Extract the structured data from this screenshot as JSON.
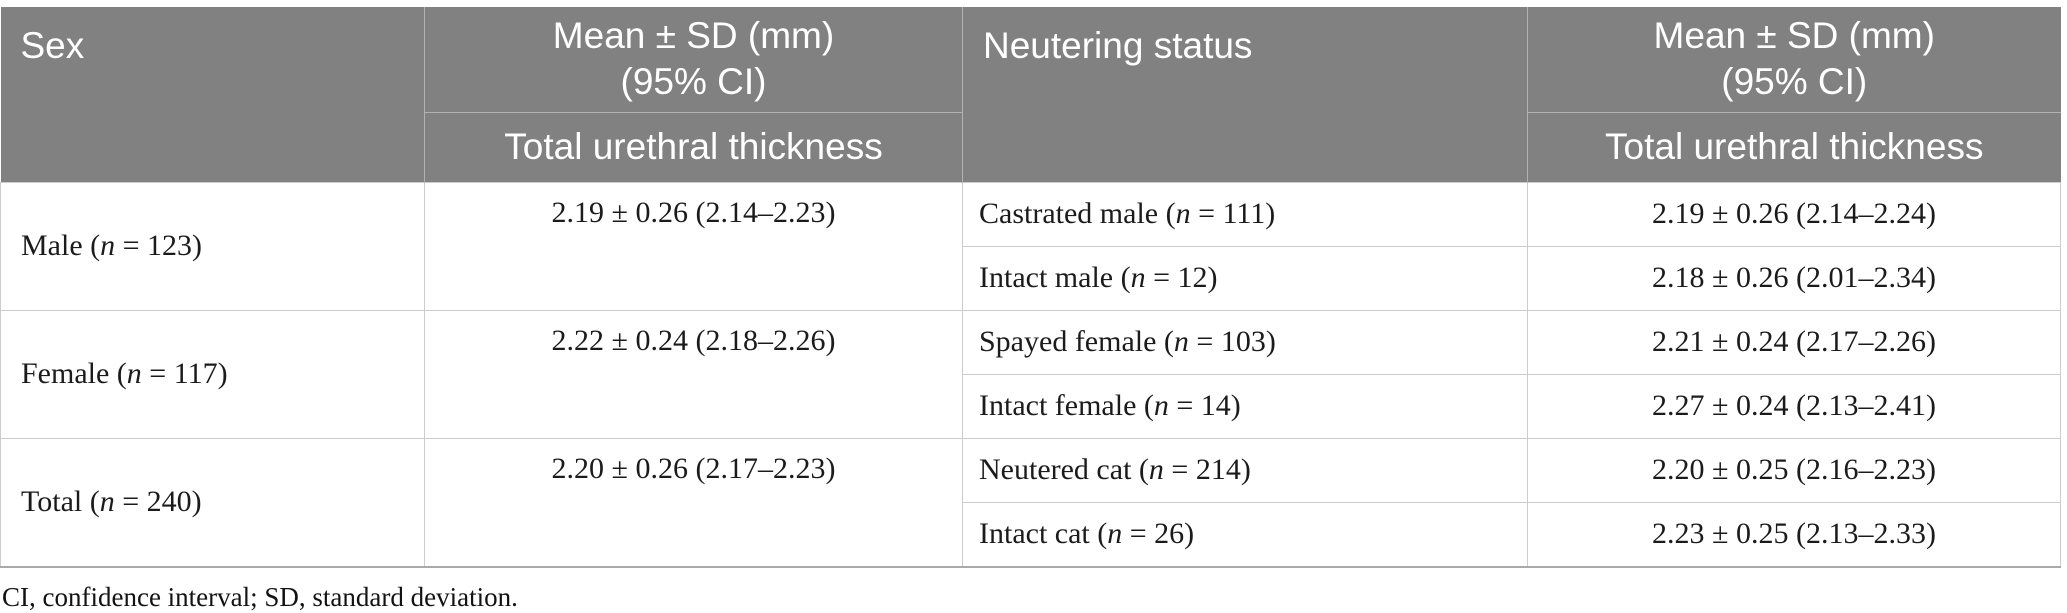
{
  "colors": {
    "header_bg": "#818181",
    "header_text": "#ffffff",
    "header_divider": "#b2b2b2",
    "body_border": "#cccccc",
    "table_bottom_border": "#a9a9a9",
    "body_text": "#1b1b1b"
  },
  "header": {
    "sex": "Sex",
    "mean_sd_line1": "Mean ± SD (mm)",
    "mean_sd_line2": "(95% CI)",
    "sub_measure": "Total urethral thickness",
    "neutering_status": "Neutering status"
  },
  "groups": [
    {
      "sex_label": {
        "pre": "Male (",
        "n": "n",
        "post": " = 123)"
      },
      "sex_value": "2.19 ± 0.26 (2.14–2.23)",
      "rows": [
        {
          "status": {
            "pre": "Castrated male (",
            "n": "n",
            "post": " = 111)"
          },
          "value": "2.19 ± 0.26 (2.14–2.24)"
        },
        {
          "status": {
            "pre": "Intact male (",
            "n": "n",
            "post": " = 12)"
          },
          "value": "2.18 ± 0.26 (2.01–2.34)"
        }
      ]
    },
    {
      "sex_label": {
        "pre": "Female (",
        "n": "n",
        "post": " = 117)"
      },
      "sex_value": "2.22 ± 0.24 (2.18–2.26)",
      "rows": [
        {
          "status": {
            "pre": "Spayed female (",
            "n": "n",
            "post": " = 103)"
          },
          "value": "2.21 ± 0.24 (2.17–2.26)"
        },
        {
          "status": {
            "pre": "Intact female (",
            "n": "n",
            "post": " = 14)"
          },
          "value": "2.27 ± 0.24 (2.13–2.41)"
        }
      ]
    },
    {
      "sex_label": {
        "pre": "Total (",
        "n": "n",
        "post": " = 240)"
      },
      "sex_value": "2.20 ± 0.26 (2.17–2.23)",
      "rows": [
        {
          "status": {
            "pre": "Neutered cat (",
            "n": "n",
            "post": " = 214)"
          },
          "value": "2.20 ± 0.25 (2.16–2.23)"
        },
        {
          "status": {
            "pre": "Intact cat (",
            "n": "n",
            "post": " = 26)"
          },
          "value": "2.23 ± 0.25 (2.13–2.33)"
        }
      ]
    }
  ],
  "footnote": "CI, confidence interval; SD, standard deviation."
}
